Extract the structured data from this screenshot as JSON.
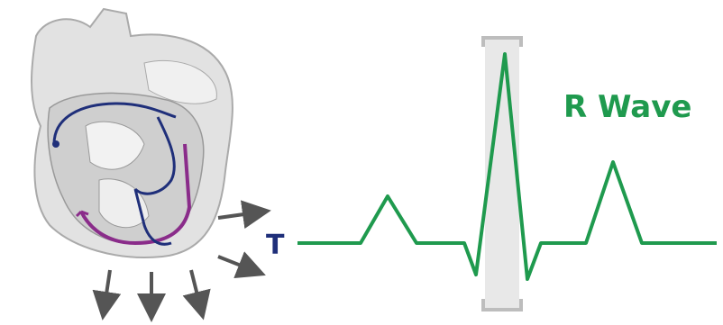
{
  "labels": {
    "lead": "T",
    "wave": "R Wave"
  }
}
